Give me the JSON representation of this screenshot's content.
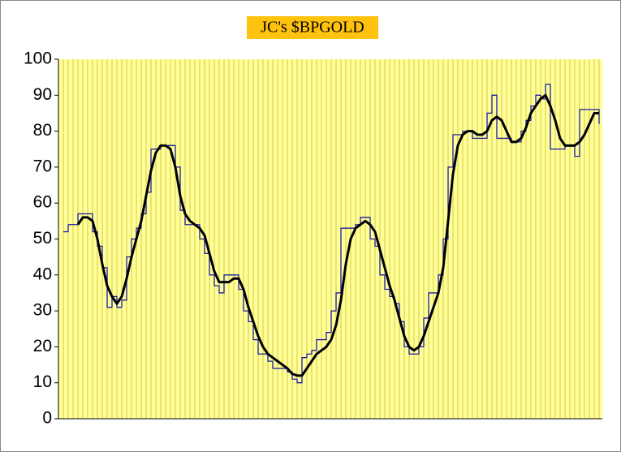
{
  "chart_data": {
    "type": "line",
    "title": "JC's $BPGOLD",
    "ylim": [
      0,
      100
    ],
    "yticks": [
      0,
      10,
      20,
      30,
      40,
      50,
      60,
      70,
      80,
      90,
      100
    ],
    "grid": true,
    "series": [
      {
        "color": "#1a1aa0",
        "step": true,
        "values": [
          52,
          54,
          54,
          57,
          57,
          57,
          52,
          48,
          42,
          31,
          34,
          31,
          33,
          45,
          50,
          53,
          57,
          63,
          75,
          75,
          76,
          76,
          76,
          70,
          58,
          54,
          54,
          54,
          50,
          46,
          40,
          37,
          35,
          40,
          40,
          40,
          36,
          30,
          27,
          22,
          18,
          18,
          16,
          14,
          14,
          14,
          13,
          11,
          10,
          17,
          18,
          19,
          22,
          22,
          24,
          30,
          35,
          53,
          53,
          53,
          54,
          56,
          56,
          50,
          48,
          40,
          36,
          34,
          32,
          27,
          20,
          18,
          18,
          20,
          28,
          35,
          35,
          40,
          50,
          70,
          79,
          79,
          80,
          80,
          78,
          78,
          78,
          85,
          90,
          78,
          78,
          78,
          77,
          77,
          80,
          83,
          87,
          90,
          89,
          93,
          75,
          75,
          75,
          76,
          76,
          73,
          86,
          86,
          86,
          86,
          82
        ]
      },
      {
        "color": "#000000",
        "step": false,
        "values": [
          null,
          null,
          null,
          54,
          56,
          56,
          55,
          50,
          43,
          37,
          34,
          32,
          34,
          39,
          45,
          50,
          55,
          62,
          69,
          74,
          76,
          76,
          75,
          70,
          62,
          57,
          55,
          54,
          53,
          51,
          46,
          41,
          38,
          38,
          38,
          39,
          39,
          36,
          31,
          27,
          23,
          20,
          18,
          17,
          16,
          15,
          14,
          12.5,
          12,
          12,
          14,
          16,
          18,
          19,
          20,
          22,
          26,
          33,
          43,
          50,
          53,
          54,
          55,
          54,
          52,
          47,
          42,
          37,
          33,
          28,
          23,
          20,
          19,
          20,
          23,
          27,
          31,
          35,
          42,
          55,
          68,
          76,
          79,
          80,
          80,
          79,
          79,
          80,
          83,
          84,
          83,
          80,
          77,
          77,
          78,
          81,
          85,
          87,
          89,
          90,
          87,
          83,
          78,
          76,
          76,
          76,
          77,
          79,
          82,
          85,
          85
        ]
      }
    ]
  }
}
